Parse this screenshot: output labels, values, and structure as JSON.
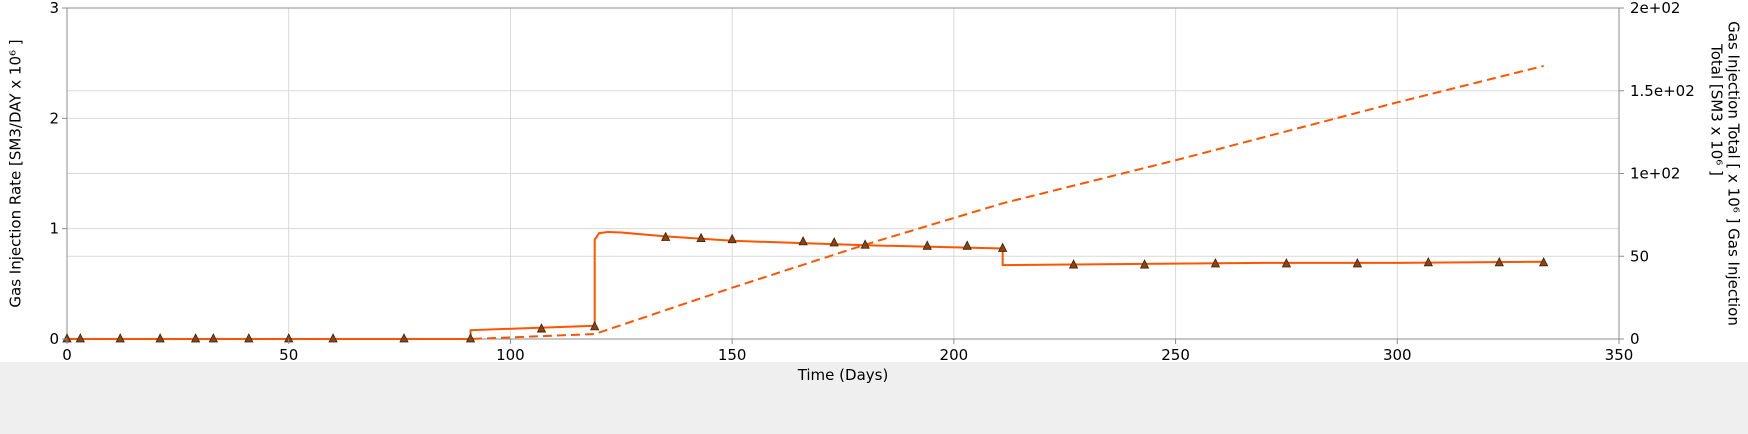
{
  "chart_data": {
    "type": "line",
    "title": "",
    "xlabel": "Time (Days)",
    "ylabel_left": "Gas Injection Rate [SM3/DAY x 10⁶ ]",
    "ylabel_right_line1": "Gas Injection Total [ x 10⁶ ] Gas Injection",
    "ylabel_right_line2": "Total [SM3 x 10⁶ ]",
    "xlim": [
      0,
      350
    ],
    "ylim_left": [
      0,
      3
    ],
    "ylim_right": [
      0,
      200
    ],
    "x_ticks": [
      0,
      50,
      100,
      150,
      200,
      250,
      300,
      350
    ],
    "x_tick_labels": [
      "0",
      "50",
      "100",
      "150",
      "200",
      "250",
      "300",
      "350"
    ],
    "y_left_ticks": [
      0,
      1,
      2,
      3
    ],
    "y_left_tick_labels": [
      "0",
      "1",
      "2",
      "3"
    ],
    "y_right_ticks": [
      0,
      50,
      100,
      150,
      200
    ],
    "y_right_tick_labels": [
      "0",
      "50",
      "1e+02",
      "1.5e+02",
      "2e+02"
    ],
    "grid": true,
    "colors": {
      "series": "#ff5500",
      "marker": "#8b4513",
      "grid": "#d9d9d9",
      "axis": "#8c8c8c"
    },
    "series": [
      {
        "axis": "left",
        "style": "solid",
        "x": [
          0,
          91,
          91,
          119,
          119,
          120,
          122,
          125,
          135,
          150,
          180,
          211,
          211,
          240,
          270,
          300,
          333
        ],
        "y": [
          0,
          0,
          0.08,
          0.12,
          0.9,
          0.96,
          0.97,
          0.965,
          0.93,
          0.89,
          0.85,
          0.82,
          0.67,
          0.68,
          0.69,
          0.69,
          0.7
        ]
      },
      {
        "axis": "right",
        "style": "dashed",
        "x": [
          0,
          91,
          119,
          150,
          180,
          211,
          250,
          300,
          333
        ],
        "y": [
          0,
          0,
          3,
          31,
          57,
          82,
          108,
          143,
          165
        ]
      },
      {
        "axis": "left",
        "style": "markers",
        "x": [
          0,
          3,
          12,
          21,
          29,
          33,
          41,
          50,
          60,
          76,
          91,
          107,
          119,
          135,
          143,
          150,
          166,
          173,
          180,
          194,
          203,
          211,
          227,
          243,
          259,
          275,
          291,
          307,
          323,
          333
        ],
        "y": [
          0,
          0,
          0,
          0,
          0,
          0,
          0,
          0,
          0,
          0,
          0,
          0.09,
          0.11,
          0.92,
          0.91,
          0.9,
          0.88,
          0.87,
          0.85,
          0.84,
          0.84,
          0.82,
          0.67,
          0.67,
          0.68,
          0.68,
          0.68,
          0.69,
          0.69,
          0.69
        ]
      }
    ]
  }
}
